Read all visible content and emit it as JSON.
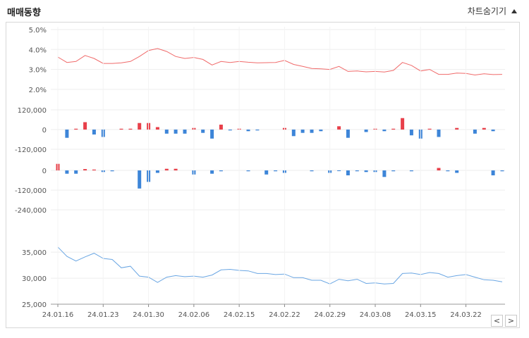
{
  "header": {
    "title": "매매동향",
    "toggle_label": "차트숨기기",
    "toggle_icon": "triangle-up-icon"
  },
  "nav": {
    "prev_label": "<",
    "next_label": ">"
  },
  "colors": {
    "rate_line": "#f06a6a",
    "price_line": "#6aa6e3",
    "buy": "#e8404a",
    "sell": "#3d85d8",
    "grid": "#ededed",
    "axis_text": "#555555"
  },
  "chart_data": [
    {
      "type": "line",
      "series": [
        {
          "values": [
            3.62,
            3.35,
            3.4,
            3.7,
            3.55,
            3.3,
            3.3,
            3.33,
            3.4,
            3.65,
            3.95,
            4.05,
            3.9,
            3.65,
            3.55,
            3.6,
            3.5,
            3.22,
            3.4,
            3.35,
            3.4,
            3.36,
            3.33,
            3.34,
            3.35,
            3.45,
            3.25,
            3.15,
            3.05,
            3.03,
            3.0,
            3.15,
            2.9,
            2.92,
            2.88,
            2.9,
            2.87,
            2.95,
            3.35,
            3.2,
            2.92,
            3.0,
            2.75,
            2.75,
            2.82,
            2.8,
            2.72,
            2.78,
            2.74,
            2.75
          ]
        }
      ],
      "y_ticks": [
        "5.0%",
        "4.0%",
        "3.0%",
        "2.0%"
      ],
      "ylim": [
        1.5,
        5.0
      ]
    },
    {
      "type": "bar",
      "series": [
        {
          "values": [
            0,
            -50000,
            5000,
            45000,
            -30000,
            -45000,
            0,
            5000,
            5000,
            40000,
            40000,
            15000,
            -25000,
            -25000,
            -25000,
            10000,
            -20000,
            -55000,
            30000,
            -5000,
            5000,
            -10000,
            -5000,
            0,
            0,
            10000,
            -40000,
            -20000,
            -20000,
            -10000,
            0,
            20000,
            -50000,
            0,
            -15000,
            5000,
            -10000,
            5000,
            70000,
            -35000,
            -55000,
            5000,
            -45000,
            0,
            10000,
            0,
            -25000,
            10000,
            -10000,
            0
          ]
        }
      ],
      "y_ticks": [
        "120,000",
        "0",
        "-120,000"
      ],
      "ylim": [
        -120000,
        120000
      ]
    },
    {
      "type": "bar",
      "series": [
        {
          "values": [
            40000,
            -20000,
            -20000,
            8000,
            5000,
            -10000,
            -5000,
            0,
            0,
            -110000,
            -70000,
            -15000,
            10000,
            10000,
            0,
            -25000,
            0,
            -20000,
            -5000,
            0,
            0,
            -5000,
            0,
            -25000,
            -5000,
            -15000,
            0,
            0,
            -5000,
            0,
            -15000,
            -2000,
            -30000,
            -5000,
            -10000,
            -10000,
            -40000,
            -5000,
            0,
            -5000,
            0,
            0,
            15000,
            -5000,
            -15000,
            0,
            0,
            0,
            -30000,
            -5000
          ]
        }
      ],
      "y_ticks": [
        "0",
        "-120,000",
        "-240,000"
      ],
      "ylim": [
        -240000,
        0
      ]
    },
    {
      "type": "line",
      "series": [
        {
          "values": [
            36000,
            34200,
            33300,
            34100,
            34800,
            33800,
            33600,
            32000,
            32300,
            30400,
            30200,
            29200,
            30200,
            30500,
            30300,
            30400,
            30200,
            30600,
            31600,
            31700,
            31500,
            31400,
            30900,
            30900,
            30700,
            30800,
            30100,
            30100,
            29600,
            29600,
            28900,
            29800,
            29500,
            29800,
            29000,
            29100,
            28900,
            29000,
            30900,
            31000,
            30700,
            31100,
            30900,
            30200,
            30500,
            30700,
            30200,
            29700,
            29600,
            29300
          ]
        }
      ],
      "y_ticks": [
        "35,000",
        "30,000",
        "25,000"
      ],
      "ylim": [
        25000,
        38000
      ]
    }
  ],
  "x_axis": {
    "date_labels": [
      "24.01.16",
      "24.01.23",
      "24.01.30",
      "24.02.06",
      "24.02.15",
      "24.02.22",
      "24.02.29",
      "24.03.08",
      "24.03.15",
      "24.03.22"
    ],
    "label_every": 5
  }
}
